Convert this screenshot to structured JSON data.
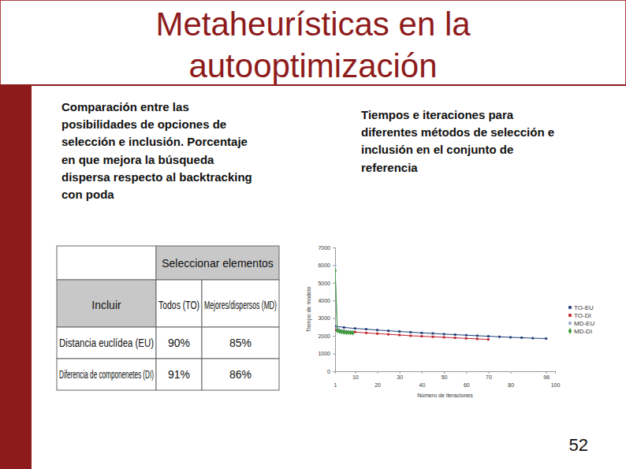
{
  "slide": {
    "title": [
      "Metaheurísticas en la",
      "autooptimización"
    ],
    "left_text": [
      "Comparación entre las",
      "posibilidades de opciones de",
      "selección e inclusión. Porcentaje",
      "en que mejora la búsqueda",
      "dispersa respecto al backtracking",
      "con poda"
    ],
    "right_text": [
      "Tiempos e iteraciones para",
      "diferentes métodos de selección e",
      "inclusión en el conjunto de",
      "referencia"
    ],
    "page_number": "52",
    "table": {
      "header": "Seleccionar elementos",
      "row_header": "Incluir",
      "columns": [
        "Todos (TO)",
        "Mejores/dispersos (MD)"
      ],
      "rows": [
        {
          "label": "Distancia euclídea (EU)",
          "cells": [
            "90%",
            "85%"
          ]
        },
        {
          "label": "Diferencia de componenetes (DI)",
          "cells": [
            "91%",
            "86%"
          ]
        }
      ]
    }
  },
  "chart_data": {
    "type": "line",
    "x_label": "Número de iteraciones",
    "y_label": "Tiempo de modelo",
    "xlim": [
      1,
      100
    ],
    "xticks": [
      1,
      10,
      20,
      30,
      40,
      50,
      60,
      70,
      80,
      96,
      100
    ],
    "ylim": [
      0,
      7000
    ],
    "yticks": [
      0,
      1000,
      2000,
      3000,
      4000,
      5000,
      6000,
      7000
    ],
    "grid": false,
    "legend": "right",
    "series": [
      {
        "name": "TO-EU",
        "color": "#1f3f7a",
        "marker": "square",
        "line_style": "solid",
        "x": [
          1,
          5,
          10,
          15,
          20,
          25,
          30,
          35,
          40,
          45,
          50,
          55,
          60,
          65,
          70,
          75,
          80,
          85,
          90,
          96
        ],
        "values": [
          2550,
          2480,
          2420,
          2380,
          2330,
          2290,
          2250,
          2210,
          2170,
          2140,
          2100,
          2070,
          2040,
          2010,
          1980,
          1950,
          1920,
          1900,
          1870,
          1850
        ]
      },
      {
        "name": "TO-DI",
        "color": "#c0202a",
        "marker": "square",
        "line_style": "solid",
        "x": [
          1,
          5,
          10,
          15,
          20,
          25,
          30,
          35,
          40,
          45,
          50,
          55,
          60,
          65,
          70
        ],
        "values": [
          2350,
          2280,
          2220,
          2170,
          2130,
          2090,
          2050,
          2010,
          1980,
          1950,
          1920,
          1890,
          1860,
          1830,
          1800
        ]
      },
      {
        "name": "MD-EU",
        "color": "#9aa8c8",
        "marker": "square",
        "line_style": "solid",
        "x": [
          1,
          2,
          3,
          4,
          5,
          6,
          7,
          8,
          9
        ],
        "values": [
          6000,
          2450,
          2350,
          2300,
          2280,
          2260,
          2240,
          2230,
          2220
        ]
      },
      {
        "name": "MD-DI",
        "color": "#3a9a3a",
        "marker": "diamond",
        "line_style": "solid",
        "x": [
          1,
          2,
          3,
          4,
          5,
          6,
          7,
          8,
          9
        ],
        "values": [
          5700,
          2300,
          2250,
          2230,
          2210,
          2200,
          2190,
          2180,
          2170
        ]
      }
    ]
  }
}
